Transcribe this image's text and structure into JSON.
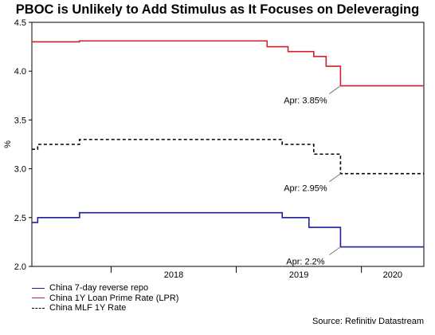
{
  "chart_data": {
    "type": "line",
    "title": "PBOC is Unlikely to Add Stimulus as It Focuses on Deleveraging",
    "ylabel": "%",
    "xlabel": "",
    "ylim": [
      2.0,
      4.5
    ],
    "xlim": [
      "2017-05-15",
      "2020-07-01"
    ],
    "yticks": [
      "2.0",
      "2.5",
      "3.0",
      "3.5",
      "4.0",
      "4.5"
    ],
    "xticks": [
      {
        "label": "2018",
        "date": "2018-01-01"
      },
      {
        "label": "2019",
        "date": "2019-01-01"
      },
      {
        "label": "2020",
        "date": "2020-01-01"
      }
    ],
    "grid": false,
    "legend_position": "bottom-left",
    "series": [
      {
        "name": "China 7-day reverse repo",
        "color": "#1f1f9e",
        "dash": "solid",
        "x": [
          "2017-05-15",
          "2017-06-01",
          "2017-10-01",
          "2019-05-15",
          "2019-08-01",
          "2019-08-25",
          "2019-11-01",
          "2020-07-01"
        ],
        "y": [
          2.45,
          2.5,
          2.55,
          2.5,
          2.4,
          2.4,
          2.2,
          2.2
        ]
      },
      {
        "name": "China 1Y Loan Prime Rate (LPR)",
        "color": "#d0202a",
        "dash": "solid",
        "x": [
          "2017-05-15",
          "2017-10-01",
          "2019-03-01",
          "2019-04-01",
          "2019-06-01",
          "2019-08-15",
          "2019-09-20",
          "2019-10-20",
          "2019-11-01",
          "2020-07-01"
        ],
        "y": [
          4.3,
          4.31,
          4.31,
          4.25,
          4.2,
          4.15,
          4.05,
          4.05,
          3.85,
          3.85
        ]
      },
      {
        "name": "China MLF 1Y Rate",
        "color": "#000000",
        "dash": "dashed",
        "x": [
          "2017-05-15",
          "2017-06-01",
          "2017-10-01",
          "2019-05-15",
          "2019-08-15",
          "2019-09-15",
          "2019-10-25",
          "2019-11-01",
          "2020-07-01"
        ],
        "y": [
          3.2,
          3.25,
          3.3,
          3.25,
          3.15,
          3.15,
          3.15,
          2.95,
          2.95
        ]
      }
    ],
    "annotations": [
      {
        "text": "Apr: 3.85%",
        "series": 1,
        "x": "2019-11-01",
        "y": 3.85
      },
      {
        "text": "Apr: 2.95%",
        "series": 2,
        "x": "2019-11-01",
        "y": 2.95
      },
      {
        "text": "Apr: 2.2%",
        "series": 0,
        "x": "2019-11-01",
        "y": 2.2
      }
    ]
  },
  "source": "Source: Refinitiv Datastream"
}
